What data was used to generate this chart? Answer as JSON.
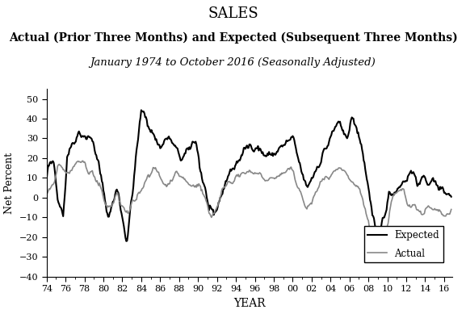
{
  "title": "SALES",
  "subtitle": "Actual (Prior Three Months) and Expected (Subsequent Three Months)",
  "subtitle2": "January 1974 to October 2016 (Seasonally Adjusted)",
  "xlabel": "YEAR",
  "ylabel": "Net Percent",
  "ylim": [
    -40,
    55
  ],
  "yticks": [
    -40,
    -30,
    -20,
    -10,
    0,
    10,
    20,
    30,
    40,
    50
  ],
  "xtick_labels": [
    "74",
    "76",
    "78",
    "80",
    "82",
    "84",
    "86",
    "88",
    "90",
    "92",
    "94",
    "96",
    "98",
    "00",
    "02",
    "04",
    "06",
    "08",
    "10",
    "12",
    "14",
    "16"
  ],
  "expected_color": "#000000",
  "actual_color": "#888888",
  "expected_lw": 1.5,
  "actual_lw": 1.2,
  "text_color": "#000000",
  "title_fontsize": 13,
  "subtitle_fontsize": 10,
  "subtitle2_fontsize": 9.5
}
